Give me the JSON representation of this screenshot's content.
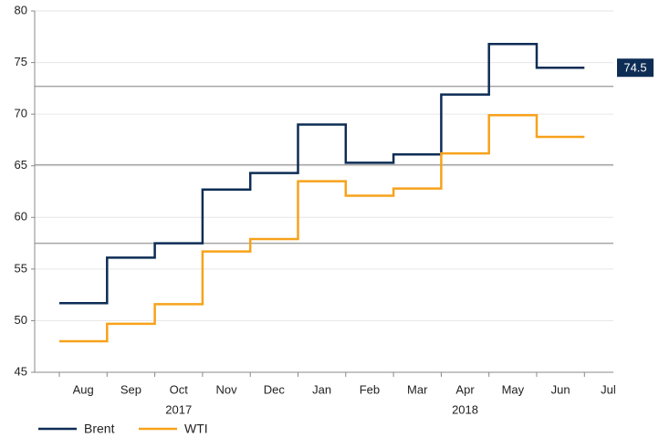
{
  "chart_data": {
    "type": "step",
    "categories": [
      "Aug",
      "Sep",
      "Oct",
      "Nov",
      "Dec",
      "Jan",
      "Feb",
      "Mar",
      "Apr",
      "May",
      "Jun",
      "Jul"
    ],
    "year_groups": [
      {
        "label": "2017",
        "span": 5
      },
      {
        "label": "2018",
        "span": 7
      }
    ],
    "series": [
      {
        "name": "Brent",
        "color": "#0d2d55",
        "values": [
          51.7,
          56.1,
          57.5,
          62.7,
          64.3,
          69.0,
          65.3,
          66.1,
          71.9,
          76.8,
          74.5,
          null
        ]
      },
      {
        "name": "WTI",
        "color": "#f7a21b",
        "values": [
          48.0,
          49.7,
          51.6,
          56.7,
          57.9,
          63.5,
          62.1,
          62.8,
          66.2,
          69.9,
          67.8,
          null
        ]
      }
    ],
    "ylim": [
      45,
      80
    ],
    "yticks": [
      45,
      50,
      55,
      60,
      65,
      70,
      75,
      80
    ],
    "grid": true,
    "reference_lines": [
      72.7,
      65.1,
      57.5
    ],
    "legend": "bottom-left"
  }
}
